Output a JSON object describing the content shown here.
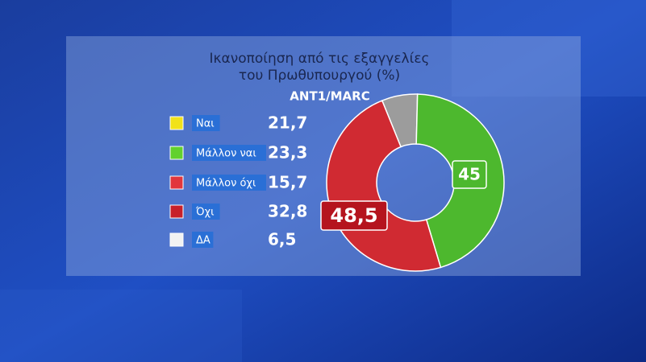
{
  "chart_data": {
    "type": "donut",
    "title": [
      "Ικανοποίηση από τις εξαγγελίες",
      "του Πρωθυπουργού (%)"
    ],
    "source": "ANT1/MARC",
    "categories": [
      "Ναι",
      "Μάλλον ναι",
      "Μάλλον όχι",
      "Όχι",
      "ΔΑ"
    ],
    "values": [
      21.7,
      23.3,
      15.7,
      32.8,
      6.5
    ],
    "value_labels": [
      "21,7",
      "23,3",
      "15,7",
      "32,8",
      "6,5"
    ],
    "colors": [
      "#f1e21a",
      "#62d12d",
      "#e2363d",
      "#c8202a",
      "#f2f2f2"
    ],
    "totals": {
      "values": [
        45,
        48.5
      ],
      "value_labels": [
        "45",
        "48,5"
      ],
      "colors": [
        "#4db82e",
        "#d02a32"
      ]
    },
    "gray_color": "#9c9c9c"
  }
}
